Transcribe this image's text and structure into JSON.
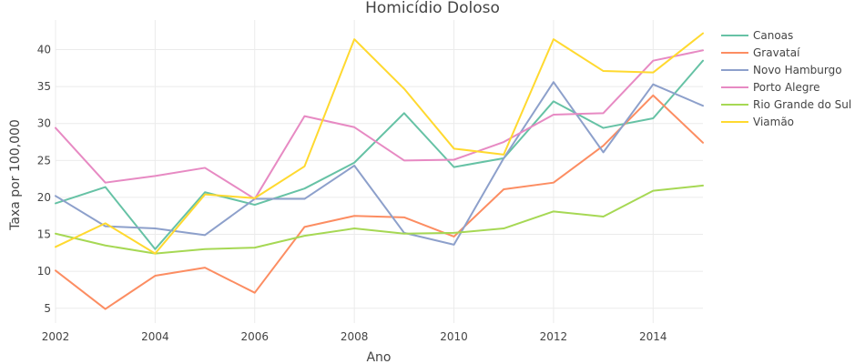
{
  "chart_data": {
    "type": "line",
    "title": "Homicídio Doloso",
    "xlabel": "Ano",
    "ylabel": "Taxa por 100,000",
    "x": [
      2002,
      2003,
      2004,
      2005,
      2006,
      2007,
      2008,
      2009,
      2010,
      2011,
      2012,
      2013,
      2014,
      2015
    ],
    "xlim": [
      2002,
      2015
    ],
    "ylim": [
      3,
      44
    ],
    "x_ticks": [
      2002,
      2004,
      2006,
      2008,
      2010,
      2012,
      2014
    ],
    "x_tick_labels": [
      "2002",
      "2004",
      "2006",
      "2008",
      "2010",
      "2012",
      "2014"
    ],
    "y_ticks": [
      5,
      10,
      15,
      20,
      25,
      30,
      35,
      40
    ],
    "y_tick_labels": [
      "5",
      "10",
      "15",
      "20",
      "25",
      "30",
      "35",
      "40"
    ],
    "grid": true,
    "legend_position": "right",
    "series": [
      {
        "name": "Canoas",
        "color": "#66c2a5",
        "values": [
          19.2,
          21.4,
          13.0,
          20.7,
          19.0,
          21.2,
          24.7,
          31.4,
          24.1,
          25.3,
          33.0,
          29.4,
          30.7,
          38.5
        ]
      },
      {
        "name": "Gravataí",
        "color": "#fc8d62",
        "values": [
          10.1,
          4.9,
          9.4,
          10.5,
          7.1,
          16.0,
          17.5,
          17.3,
          14.7,
          21.1,
          22.0,
          27.0,
          33.8,
          27.4
        ]
      },
      {
        "name": "Novo Hamburgo",
        "color": "#8da0cb",
        "values": [
          20.2,
          16.1,
          15.8,
          14.9,
          19.8,
          19.8,
          24.3,
          15.2,
          13.6,
          25.3,
          35.6,
          26.1,
          35.3,
          32.4
        ]
      },
      {
        "name": "Porto Alegre",
        "color": "#e78ac3",
        "values": [
          29.4,
          22.0,
          22.9,
          24.0,
          19.8,
          31.0,
          29.5,
          25.0,
          25.1,
          27.5,
          31.2,
          31.4,
          38.5,
          39.9
        ]
      },
      {
        "name": "Rio Grande do Sul",
        "color": "#a6d854",
        "values": [
          15.1,
          13.5,
          12.4,
          13.0,
          13.2,
          14.8,
          15.8,
          15.1,
          15.2,
          15.8,
          18.1,
          17.4,
          20.9,
          21.6
        ]
      },
      {
        "name": "Viamão",
        "color": "#ffd92f",
        "values": [
          13.3,
          16.5,
          12.4,
          20.4,
          19.9,
          24.2,
          41.4,
          34.7,
          26.6,
          25.8,
          41.4,
          37.1,
          36.9,
          42.2
        ]
      }
    ]
  }
}
